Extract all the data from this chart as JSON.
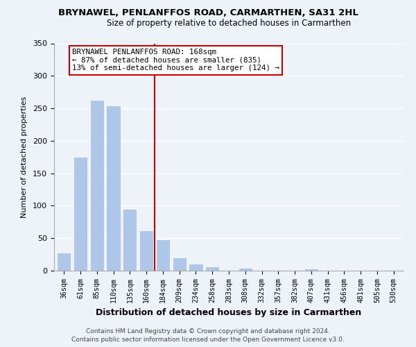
{
  "title": "BRYNAWEL, PENLANFFOS ROAD, CARMARTHEN, SA31 2HL",
  "subtitle": "Size of property relative to detached houses in Carmarthen",
  "xlabel": "Distribution of detached houses by size in Carmarthen",
  "ylabel": "Number of detached properties",
  "bar_labels": [
    "36sqm",
    "61sqm",
    "85sqm",
    "110sqm",
    "135sqm",
    "160sqm",
    "184sqm",
    "209sqm",
    "234sqm",
    "258sqm",
    "283sqm",
    "308sqm",
    "332sqm",
    "357sqm",
    "382sqm",
    "407sqm",
    "431sqm",
    "456sqm",
    "481sqm",
    "505sqm",
    "530sqm"
  ],
  "bar_values": [
    28,
    175,
    263,
    254,
    95,
    62,
    48,
    20,
    11,
    6,
    0,
    4,
    0,
    0,
    0,
    3,
    0,
    0,
    0,
    1,
    0
  ],
  "bar_color": "#aec6e8",
  "vline_x": 5.5,
  "vline_color": "#cc0000",
  "annotation_title": "BRYNAWEL PENLANFFOS ROAD: 168sqm",
  "annotation_line1": "← 87% of detached houses are smaller (835)",
  "annotation_line2": "13% of semi-detached houses are larger (124) →",
  "annotation_box_color": "#ffffff",
  "annotation_box_edge": "#cc0000",
  "ylim": [
    0,
    350
  ],
  "yticks": [
    0,
    50,
    100,
    150,
    200,
    250,
    300,
    350
  ],
  "footer1": "Contains HM Land Registry data © Crown copyright and database right 2024.",
  "footer2": "Contains public sector information licensed under the Open Government Licence v3.0.",
  "bg_color": "#eef2f9"
}
